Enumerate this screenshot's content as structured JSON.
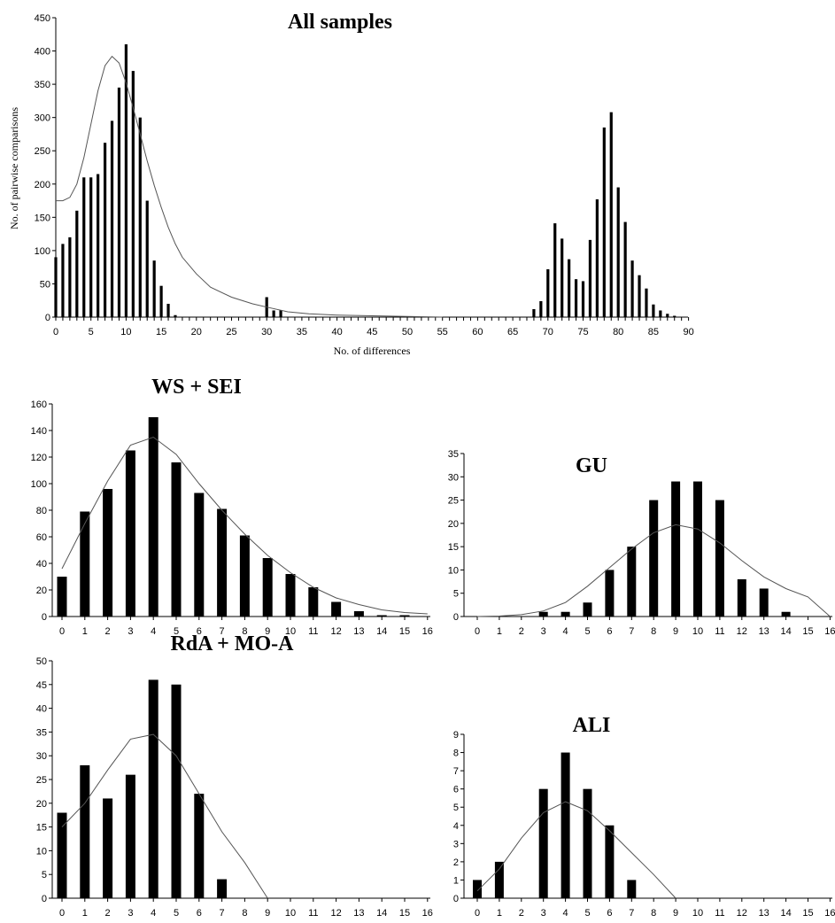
{
  "chart_data": [
    {
      "id": "all",
      "type": "bar",
      "title": "All samples",
      "xlabel": "No. of differences",
      "ylabel": "No. of pairwise comparisons",
      "ylim": [
        0,
        450
      ],
      "xlim": [
        0,
        90
      ],
      "y_ticks": [
        0,
        50,
        100,
        150,
        200,
        250,
        300,
        350,
        400,
        450
      ],
      "x_ticks": [
        0,
        5,
        10,
        15,
        20,
        25,
        30,
        35,
        40,
        45,
        50,
        55,
        60,
        65,
        70,
        75,
        80,
        85,
        90
      ],
      "bars": [
        [
          0,
          90
        ],
        [
          1,
          110
        ],
        [
          2,
          120
        ],
        [
          3,
          160
        ],
        [
          4,
          210
        ],
        [
          5,
          210
        ],
        [
          6,
          215
        ],
        [
          7,
          262
        ],
        [
          8,
          295
        ],
        [
          9,
          345
        ],
        [
          10,
          410
        ],
        [
          11,
          370
        ],
        [
          12,
          300
        ],
        [
          13,
          175
        ],
        [
          14,
          85
        ],
        [
          15,
          47
        ],
        [
          16,
          20
        ],
        [
          17,
          3
        ],
        [
          30,
          30
        ],
        [
          31,
          10
        ],
        [
          32,
          10
        ],
        [
          68,
          12
        ],
        [
          69,
          24
        ],
        [
          70,
          72
        ],
        [
          71,
          141
        ],
        [
          72,
          118
        ],
        [
          73,
          87
        ],
        [
          74,
          57
        ],
        [
          75,
          54
        ],
        [
          76,
          116
        ],
        [
          77,
          177
        ],
        [
          78,
          285
        ],
        [
          79,
          308
        ],
        [
          80,
          195
        ],
        [
          81,
          143
        ],
        [
          82,
          85
        ],
        [
          83,
          63
        ],
        [
          84,
          43
        ],
        [
          85,
          19
        ],
        [
          86,
          10
        ],
        [
          87,
          5
        ],
        [
          88,
          2
        ]
      ],
      "curve": [
        [
          0,
          175
        ],
        [
          1,
          175
        ],
        [
          2,
          180
        ],
        [
          3,
          200
        ],
        [
          4,
          240
        ],
        [
          5,
          290
        ],
        [
          6,
          340
        ],
        [
          7,
          378
        ],
        [
          8,
          392
        ],
        [
          9,
          382
        ],
        [
          10,
          352
        ],
        [
          11,
          315
        ],
        [
          12,
          275
        ],
        [
          13,
          235
        ],
        [
          14,
          198
        ],
        [
          15,
          165
        ],
        [
          16,
          135
        ],
        [
          17,
          110
        ],
        [
          18,
          90
        ],
        [
          20,
          65
        ],
        [
          22,
          45
        ],
        [
          25,
          30
        ],
        [
          28,
          20
        ],
        [
          30,
          15
        ],
        [
          33,
          8
        ],
        [
          36,
          5
        ],
        [
          40,
          3
        ],
        [
          45,
          2
        ],
        [
          50,
          1
        ],
        [
          55,
          0
        ]
      ]
    },
    {
      "id": "ws",
      "type": "bar",
      "title": "WS + SEI",
      "ylim": [
        0,
        160
      ],
      "xlim": [
        0,
        16
      ],
      "y_ticks": [
        0,
        20,
        40,
        60,
        80,
        100,
        120,
        140,
        160
      ],
      "x_ticks": [
        0,
        1,
        2,
        3,
        4,
        5,
        6,
        7,
        8,
        9,
        10,
        11,
        12,
        13,
        14,
        15,
        16
      ],
      "bars": [
        [
          0,
          30
        ],
        [
          1,
          79
        ],
        [
          2,
          96
        ],
        [
          3,
          125
        ],
        [
          4,
          150
        ],
        [
          5,
          116
        ],
        [
          6,
          93
        ],
        [
          7,
          81
        ],
        [
          8,
          61
        ],
        [
          9,
          44
        ],
        [
          10,
          32
        ],
        [
          11,
          22
        ],
        [
          12,
          11
        ],
        [
          13,
          4
        ],
        [
          14,
          1
        ],
        [
          15,
          1
        ]
      ],
      "curve": [
        [
          0,
          36
        ],
        [
          1,
          70
        ],
        [
          2,
          102
        ],
        [
          3,
          129
        ],
        [
          4,
          135
        ],
        [
          5,
          122
        ],
        [
          6,
          100
        ],
        [
          7,
          80
        ],
        [
          8,
          62
        ],
        [
          9,
          46
        ],
        [
          10,
          33
        ],
        [
          11,
          22
        ],
        [
          12,
          14
        ],
        [
          13,
          9
        ],
        [
          14,
          5
        ],
        [
          15,
          3
        ],
        [
          16,
          2
        ]
      ]
    },
    {
      "id": "gu",
      "type": "bar",
      "title": "GU",
      "ylim": [
        0,
        35
      ],
      "xlim": [
        0,
        16
      ],
      "y_ticks": [
        0,
        5,
        10,
        15,
        20,
        25,
        30,
        35
      ],
      "x_ticks": [
        0,
        1,
        2,
        3,
        4,
        5,
        6,
        7,
        8,
        9,
        10,
        11,
        12,
        13,
        14,
        15,
        16
      ],
      "bars": [
        [
          3,
          1
        ],
        [
          4,
          1
        ],
        [
          5,
          3
        ],
        [
          6,
          10
        ],
        [
          7,
          15
        ],
        [
          8,
          25
        ],
        [
          9,
          29
        ],
        [
          10,
          29
        ],
        [
          11,
          25
        ],
        [
          12,
          8
        ],
        [
          13,
          6
        ],
        [
          14,
          1
        ]
      ],
      "curve": [
        [
          0,
          0
        ],
        [
          1,
          0.1
        ],
        [
          2,
          0.4
        ],
        [
          3,
          1.2
        ],
        [
          4,
          3
        ],
        [
          5,
          6.5
        ],
        [
          6,
          10.5
        ],
        [
          7,
          14.5
        ],
        [
          8,
          18
        ],
        [
          9,
          19.7
        ],
        [
          10,
          18.8
        ],
        [
          11,
          15.8
        ],
        [
          12,
          12
        ],
        [
          13,
          8.5
        ],
        [
          14,
          6
        ],
        [
          15,
          4.2
        ],
        [
          16,
          0
        ]
      ]
    },
    {
      "id": "rda",
      "type": "bar",
      "title": "RdA + MO-A",
      "ylim": [
        0,
        50
      ],
      "xlim": [
        0,
        16
      ],
      "y_ticks": [
        0,
        5,
        10,
        15,
        20,
        25,
        30,
        35,
        40,
        45,
        50
      ],
      "x_ticks": [
        0,
        1,
        2,
        3,
        4,
        5,
        6,
        7,
        8,
        9,
        10,
        11,
        12,
        13,
        14,
        15,
        16
      ],
      "bars": [
        [
          0,
          18
        ],
        [
          1,
          28
        ],
        [
          2,
          21
        ],
        [
          3,
          26
        ],
        [
          4,
          46
        ],
        [
          5,
          45
        ],
        [
          6,
          22
        ],
        [
          7,
          4
        ]
      ],
      "curve": [
        [
          0,
          15
        ],
        [
          1,
          20
        ],
        [
          2,
          27
        ],
        [
          3,
          33.5
        ],
        [
          4,
          34.5
        ],
        [
          5,
          30
        ],
        [
          6,
          22
        ],
        [
          7,
          14
        ],
        [
          8,
          7.5
        ],
        [
          9,
          0
        ]
      ]
    },
    {
      "id": "ali",
      "type": "bar",
      "title": "ALI",
      "ylim": [
        0,
        9
      ],
      "xlim": [
        0,
        16
      ],
      "y_ticks": [
        0,
        1,
        2,
        3,
        4,
        5,
        6,
        7,
        8,
        9
      ],
      "x_ticks": [
        0,
        1,
        2,
        3,
        4,
        5,
        6,
        7,
        8,
        9,
        10,
        11,
        12,
        13,
        14,
        15,
        16
      ],
      "bars": [
        [
          0,
          1
        ],
        [
          1,
          2
        ],
        [
          3,
          6
        ],
        [
          4,
          8
        ],
        [
          5,
          6
        ],
        [
          6,
          4
        ],
        [
          7,
          1
        ]
      ],
      "curve": [
        [
          0,
          0.4
        ],
        [
          1,
          1.6
        ],
        [
          2,
          3.3
        ],
        [
          3,
          4.7
        ],
        [
          4,
          5.3
        ],
        [
          5,
          4.8
        ],
        [
          6,
          3.7
        ],
        [
          7,
          2.5
        ],
        [
          8,
          1.3
        ],
        [
          9,
          0
        ]
      ]
    }
  ]
}
